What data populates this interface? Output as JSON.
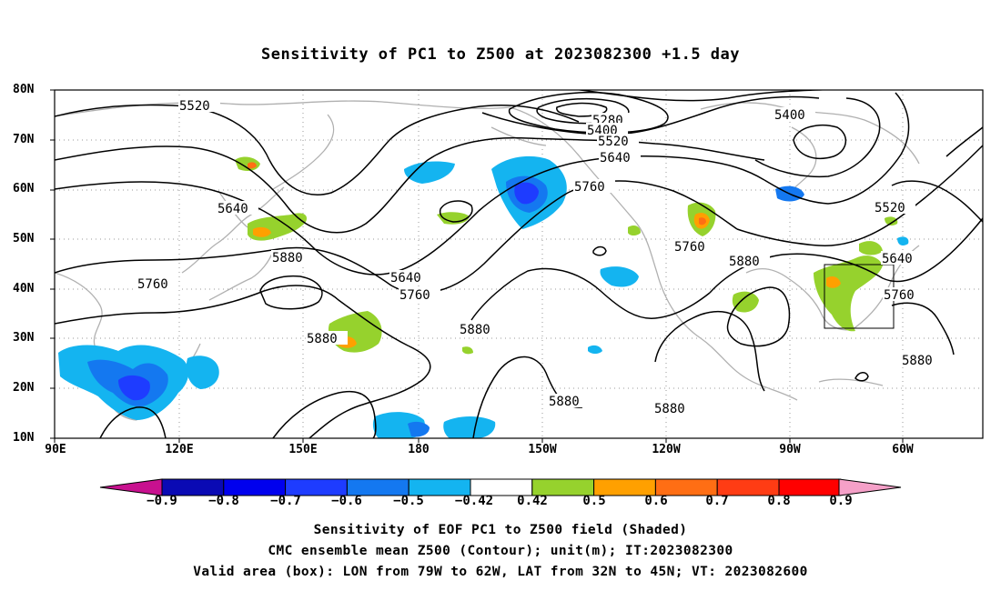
{
  "map": {
    "title": "Sensitivity of PC1 to Z500 at 2023082300 +1.5 day",
    "lat_labels": [
      "80N",
      "70N",
      "60N",
      "50N",
      "40N",
      "30N",
      "20N",
      "10N"
    ],
    "lon_labels": [
      "90E",
      "120E",
      "150E",
      "180",
      "150W",
      "120W",
      "90W",
      "60W"
    ],
    "contour_labels": [
      "5520",
      "5280",
      "5400",
      "5520",
      "5400",
      "5640",
      "5760",
      "5640",
      "5520",
      "5760",
      "5880",
      "5640",
      "5760",
      "5640",
      "5760",
      "5760",
      "5880",
      "5880",
      "5880",
      "5880",
      "5880",
      "5880"
    ],
    "valid_box": {
      "lon_west": -79,
      "lon_east": -62,
      "lat_south": 32,
      "lat_north": 45
    },
    "colors": {
      "contour": "#000000",
      "coast": "#b0b0b0",
      "grid": "#9a9a9a"
    }
  },
  "colorbar": {
    "labels": [
      "−0.9",
      "−0.8",
      "−0.7",
      "−0.6",
      "−0.5",
      "−0.42",
      "0.42",
      "0.5",
      "0.6",
      "0.7",
      "0.8",
      "0.9"
    ],
    "colors": [
      "#c8118f",
      "#0a0ab4",
      "#0000ee",
      "#1e3cff",
      "#1478f0",
      "#14b4f0",
      "#ffffff",
      "#96d22d",
      "#ffa000",
      "#ff6e14",
      "#ff3c14",
      "#ff0000",
      "#f5a0c8"
    ]
  },
  "captions": {
    "line1": "Sensitivity of EOF PC1 to Z500 field (Shaded)",
    "line2": "CMC ensemble mean Z500 (Contour); unit(m); IT:2023082300",
    "line3": "Valid area (box): LON from 79W to 62W, LAT from 32N to 45N; VT: 2023082600"
  }
}
